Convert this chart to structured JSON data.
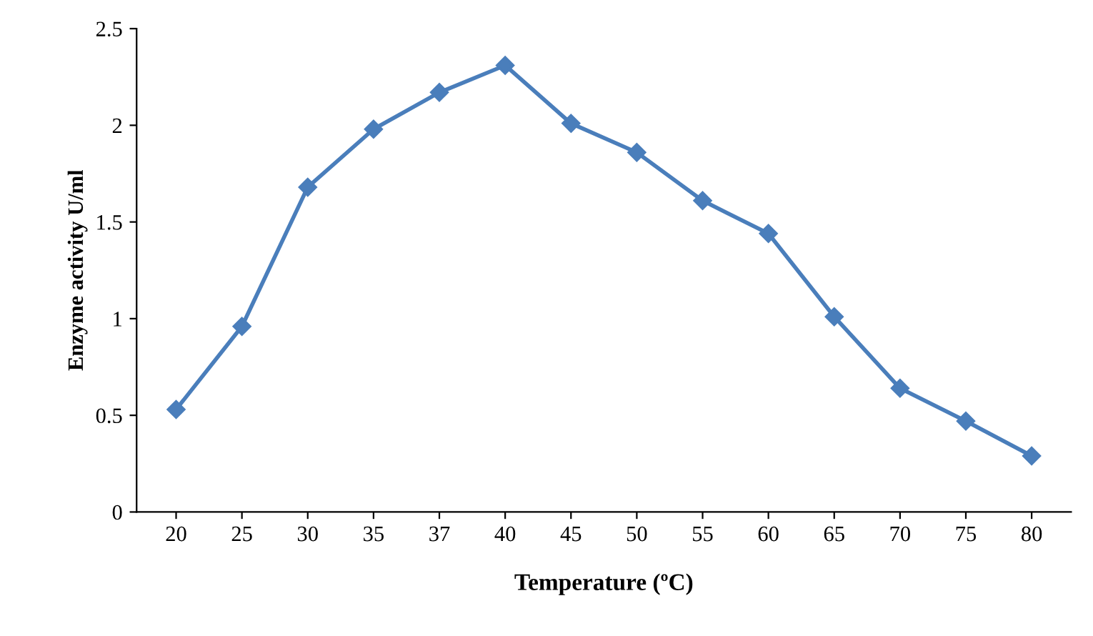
{
  "chart_data": {
    "type": "line",
    "xlabel": "Temperature (ºC)",
    "ylabel": "Enzyme activity U/ml",
    "categories": [
      "20",
      "25",
      "30",
      "35",
      "37",
      "40",
      "45",
      "50",
      "55",
      "60",
      "65",
      "70",
      "75",
      "80"
    ],
    "series": [
      {
        "color": "#4a7ebb",
        "values": [
          0.53,
          0.96,
          1.68,
          1.98,
          2.17,
          2.31,
          2.01,
          1.86,
          1.61,
          1.44,
          1.01,
          0.64,
          0.47,
          0.29
        ]
      }
    ],
    "ylim": [
      0,
      2.5
    ],
    "yticks": [
      0,
      0.5,
      1,
      1.5,
      2,
      2.5
    ],
    "grid": false,
    "legend": false,
    "marker": "diamond",
    "line_style": "solid"
  }
}
